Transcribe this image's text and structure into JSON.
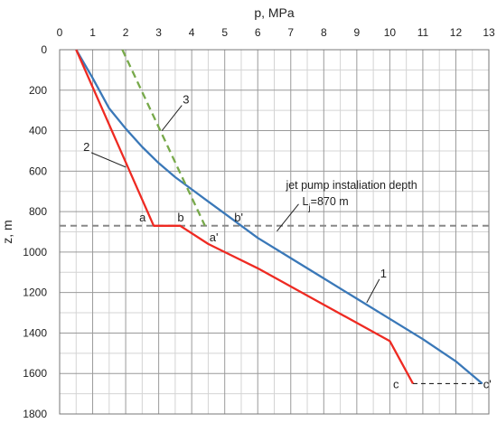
{
  "chart_data": {
    "type": "line",
    "title": "",
    "xlabel": "p, MPa",
    "ylabel": "z, m",
    "x_axis_position": "top",
    "y_axis_inverted": true,
    "xlim": [
      0,
      13
    ],
    "ylim": [
      0,
      1800
    ],
    "x_major_ticks": [
      0,
      1,
      2,
      3,
      4,
      5,
      6,
      7,
      8,
      9,
      10,
      11,
      12,
      13
    ],
    "x_tick_labels": [
      "0",
      "1",
      "2",
      "3",
      "4",
      "5",
      "6",
      "7",
      "8",
      "9",
      "10",
      "11",
      "12",
      "13"
    ],
    "y_major_ticks": [
      0,
      200,
      400,
      600,
      800,
      1000,
      1200,
      1400,
      1600,
      1800
    ],
    "y_tick_labels": [
      "0",
      "200",
      "400",
      "600",
      "800",
      "1000",
      "1200",
      "1400",
      "1600",
      "1800"
    ],
    "grid": true,
    "grid_minor_x": 0.5,
    "grid_minor_y": 100,
    "series": [
      {
        "name": "1",
        "color": "#3a78b8",
        "dash": "solid",
        "points": [
          [
            0.5,
            0
          ],
          [
            1,
            140
          ],
          [
            1.5,
            290
          ],
          [
            2,
            390
          ],
          [
            2.5,
            480
          ],
          [
            3,
            560
          ],
          [
            3.5,
            630
          ],
          [
            4,
            690
          ],
          [
            4.5,
            750
          ],
          [
            5,
            810
          ],
          [
            5.5,
            870
          ],
          [
            6,
            930
          ],
          [
            7,
            1030
          ],
          [
            8,
            1130
          ],
          [
            9,
            1230
          ],
          [
            10,
            1330
          ],
          [
            11,
            1430
          ],
          [
            12,
            1540
          ],
          [
            12.8,
            1650
          ]
        ]
      },
      {
        "name": "2",
        "color": "#ee2a22",
        "dash": "solid",
        "points": [
          [
            0.5,
            0
          ],
          [
            2.85,
            870
          ],
          [
            3.65,
            870
          ],
          [
            4.5,
            960
          ],
          [
            6,
            1080
          ],
          [
            8,
            1260
          ],
          [
            10,
            1440
          ],
          [
            10.7,
            1650
          ]
        ]
      },
      {
        "name": "3",
        "color": "#77a94a",
        "dash": "dashed",
        "points": [
          [
            1.9,
            0
          ],
          [
            4.4,
            870
          ]
        ]
      }
    ],
    "reference_lines": [
      {
        "orientation": "horizontal",
        "y": 870,
        "color": "#888888",
        "dash": "dashed"
      },
      {
        "orientation": "horizontal",
        "y": 1650,
        "x_from": 10.7,
        "x_to": 12.8,
        "color": "#222222",
        "dash": "dashed"
      }
    ],
    "point_labels": [
      {
        "text": "a",
        "x": 2.85,
        "y": 870
      },
      {
        "text": "b",
        "x": 3.65,
        "y": 870
      },
      {
        "text": "b'",
        "x": 5.4,
        "y": 870
      },
      {
        "text": "a'",
        "x": 4.4,
        "y": 870
      },
      {
        "text": "c",
        "x": 10.7,
        "y": 1650
      },
      {
        "text": "c'",
        "x": 12.8,
        "y": 1650
      }
    ],
    "curve_labels": [
      {
        "text": "1",
        "x": 9.3,
        "y": 1250
      },
      {
        "text": "2",
        "x": 2.0,
        "y": 580
      },
      {
        "text": "3",
        "x": 3.1,
        "y": 400
      }
    ],
    "annotation": {
      "text_line1": "jet pump instaliation depth",
      "text_line2_prefix": "L",
      "text_line2_sub": "j",
      "text_line2_suffix": "=870 m",
      "x": 6.8,
      "y": 870
    }
  }
}
